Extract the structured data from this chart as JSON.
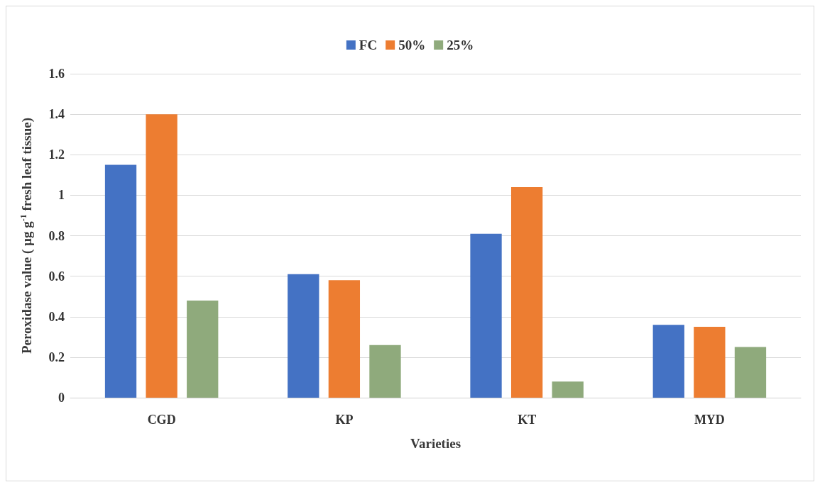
{
  "chart_data": {
    "type": "bar",
    "xlabel": "Varieties",
    "ylabel": "Peroxidase value ( µg g$^{-1}$ fresh leaf tissue)",
    "categories": [
      "CGD",
      "KP",
      "KT",
      "MYD"
    ],
    "series": [
      {
        "name": "FC",
        "color": "#4472c4",
        "values": [
          1.15,
          0.61,
          0.81,
          0.36
        ]
      },
      {
        "name": "50%",
        "color": "#ed7d31",
        "values": [
          1.4,
          0.58,
          1.04,
          0.35
        ]
      },
      {
        "name": "25%",
        "color": "#8faa7c",
        "values": [
          0.48,
          0.26,
          0.08,
          0.25
        ]
      }
    ],
    "ylim": [
      0,
      1.6
    ],
    "yticks": [
      0,
      0.2,
      0.4,
      0.6,
      0.8,
      1,
      1.2,
      1.4,
      1.6
    ],
    "grid": "y",
    "legend": "top"
  }
}
